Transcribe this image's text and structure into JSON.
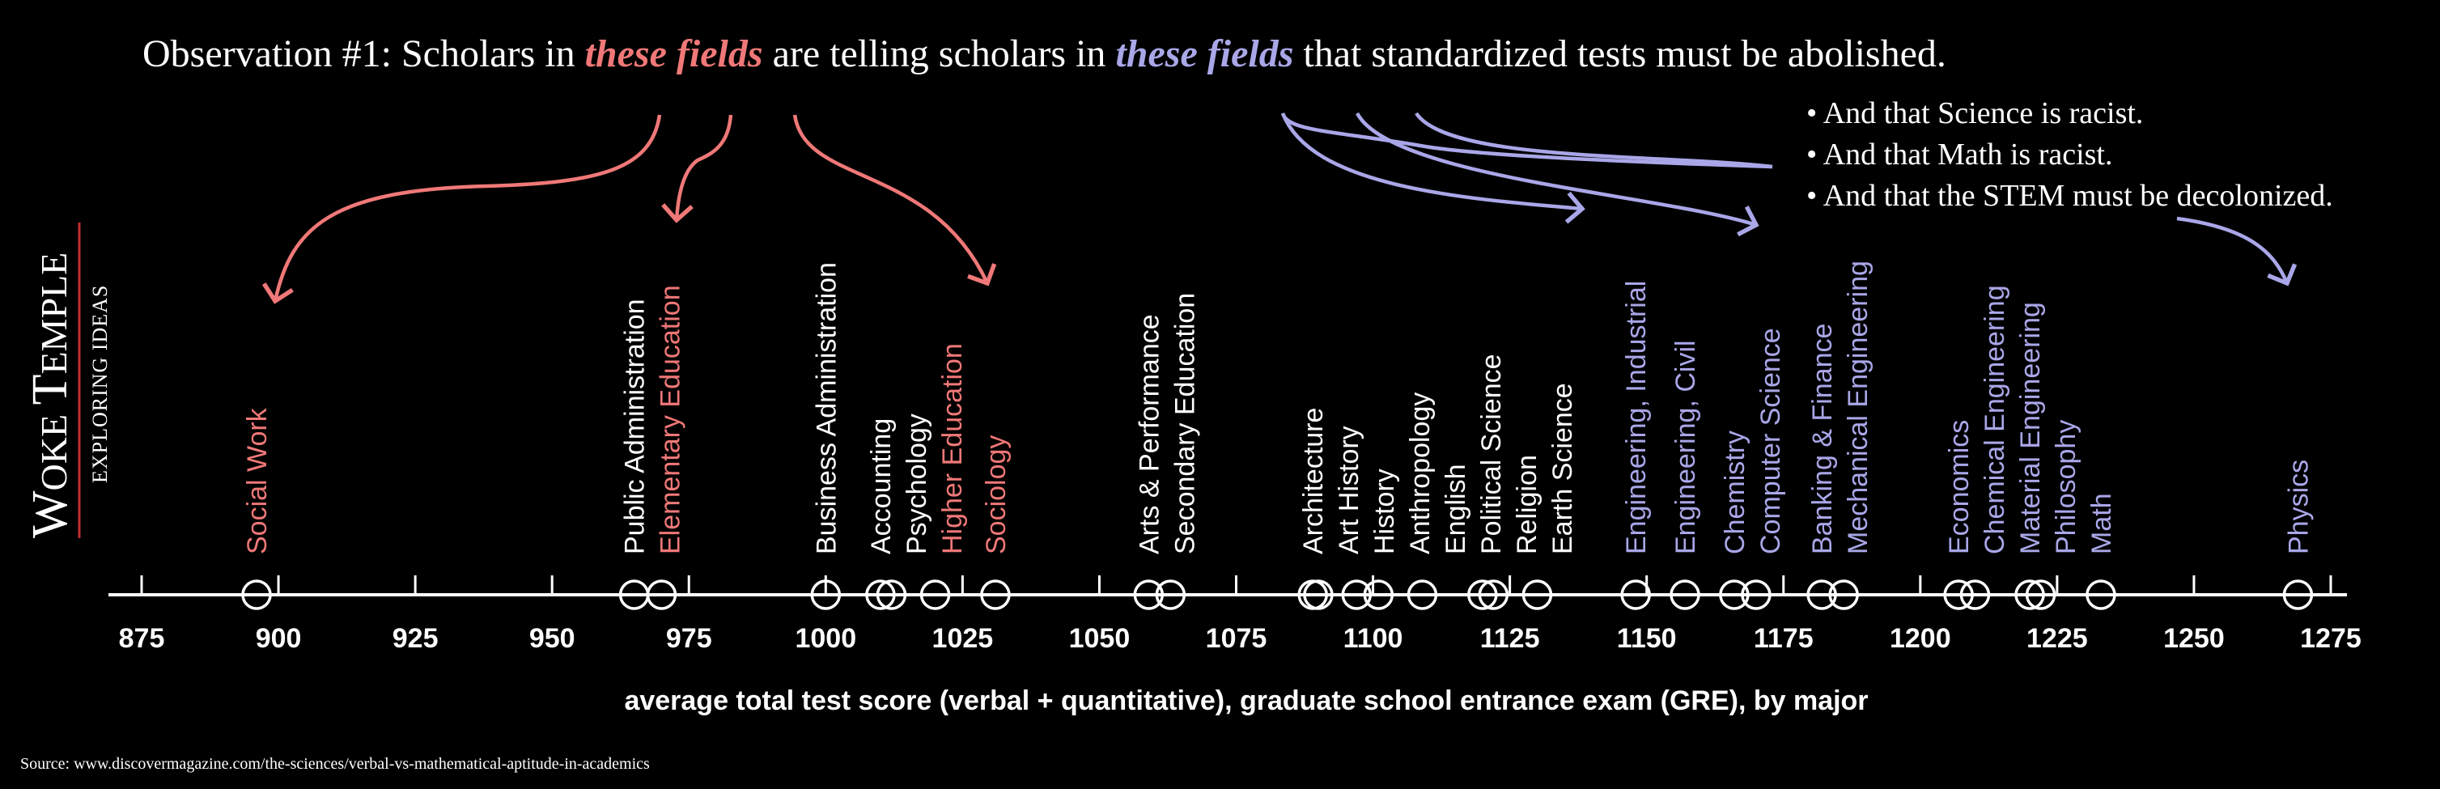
{
  "title": {
    "prefix": "Observation #1:  Scholars in ",
    "emph1": "these fields",
    "middle": " are telling scholars in ",
    "emph2": "these fields",
    "suffix": " that standardized tests must be abolished."
  },
  "bullets": [
    "• And that Science is racist.",
    "• And that Math is racist.",
    "• And that the STEM must be decolonized."
  ],
  "logo": {
    "line1_big_w": "W",
    "line1_small": "OKE ",
    "line1_big_t": "T",
    "line1_small2": "EMPLE",
    "line2": "EXPLORING IDEAS"
  },
  "source": "Source: www.discovermagazine.com/the-sciences/verbal-vs-mathematical-aptitude-in-academics",
  "colors": {
    "background": "#000000",
    "neutral": "#ffffff",
    "red_group": "#f07878",
    "blue_group": "#a9a7e8"
  },
  "chart_data": {
    "type": "scatter",
    "xlabel": "average total test score (verbal + quantitative), graduate school entrance exam (GRE), by major",
    "xlim": [
      870,
      1278
    ],
    "xticks": [
      875,
      900,
      925,
      950,
      975,
      1000,
      1025,
      1050,
      1075,
      1100,
      1125,
      1150,
      1175,
      1200,
      1225,
      1250,
      1275
    ],
    "points": [
      {
        "label": "Social Work",
        "x": 896,
        "group": "red"
      },
      {
        "label": "Public Administration",
        "x": 965,
        "group": "neutral"
      },
      {
        "label": "Elementary Education",
        "x": 970,
        "group": "red"
      },
      {
        "label": "Business Administration",
        "x": 1000,
        "group": "neutral"
      },
      {
        "label": "Accounting",
        "x": 1010,
        "group": "neutral"
      },
      {
        "label": "Psychology",
        "x": 1012,
        "group": "neutral"
      },
      {
        "label": "Higher Education",
        "x": 1020,
        "group": "red"
      },
      {
        "label": "Sociology",
        "x": 1031,
        "group": "red"
      },
      {
        "label": "Arts & Performance",
        "x": 1059,
        "group": "neutral"
      },
      {
        "label": "Secondary Education",
        "x": 1063,
        "group": "neutral"
      },
      {
        "label": "Architecture",
        "x": 1089,
        "group": "neutral"
      },
      {
        "label": "Art History",
        "x": 1090,
        "group": "neutral"
      },
      {
        "label": "History",
        "x": 1097,
        "group": "neutral"
      },
      {
        "label": "Anthropology",
        "x": 1101,
        "group": "neutral"
      },
      {
        "label": "English",
        "x": 1109,
        "group": "neutral"
      },
      {
        "label": "Political Science",
        "x": 1120,
        "group": "neutral"
      },
      {
        "label": "Religion",
        "x": 1122,
        "group": "neutral"
      },
      {
        "label": "Earth Science",
        "x": 1130,
        "group": "neutral"
      },
      {
        "label": "Engineering, Industrial",
        "x": 1148,
        "group": "blue"
      },
      {
        "label": "Engineering, Civil",
        "x": 1157,
        "group": "blue"
      },
      {
        "label": "Chemistry",
        "x": 1166,
        "group": "blue"
      },
      {
        "label": "Computer Science",
        "x": 1170,
        "group": "blue"
      },
      {
        "label": "Banking & Finance",
        "x": 1182,
        "group": "blue"
      },
      {
        "label": "Mechanical Engineering",
        "x": 1186,
        "group": "blue"
      },
      {
        "label": "Economics",
        "x": 1207,
        "group": "blue"
      },
      {
        "label": "Chemical Engineering",
        "x": 1210,
        "group": "blue"
      },
      {
        "label": "Material Engineering",
        "x": 1220,
        "group": "blue"
      },
      {
        "label": "Philosophy",
        "x": 1222,
        "group": "blue"
      },
      {
        "label": "Math",
        "x": 1233,
        "group": "blue"
      },
      {
        "label": "Physics",
        "x": 1269,
        "group": "blue"
      }
    ]
  }
}
